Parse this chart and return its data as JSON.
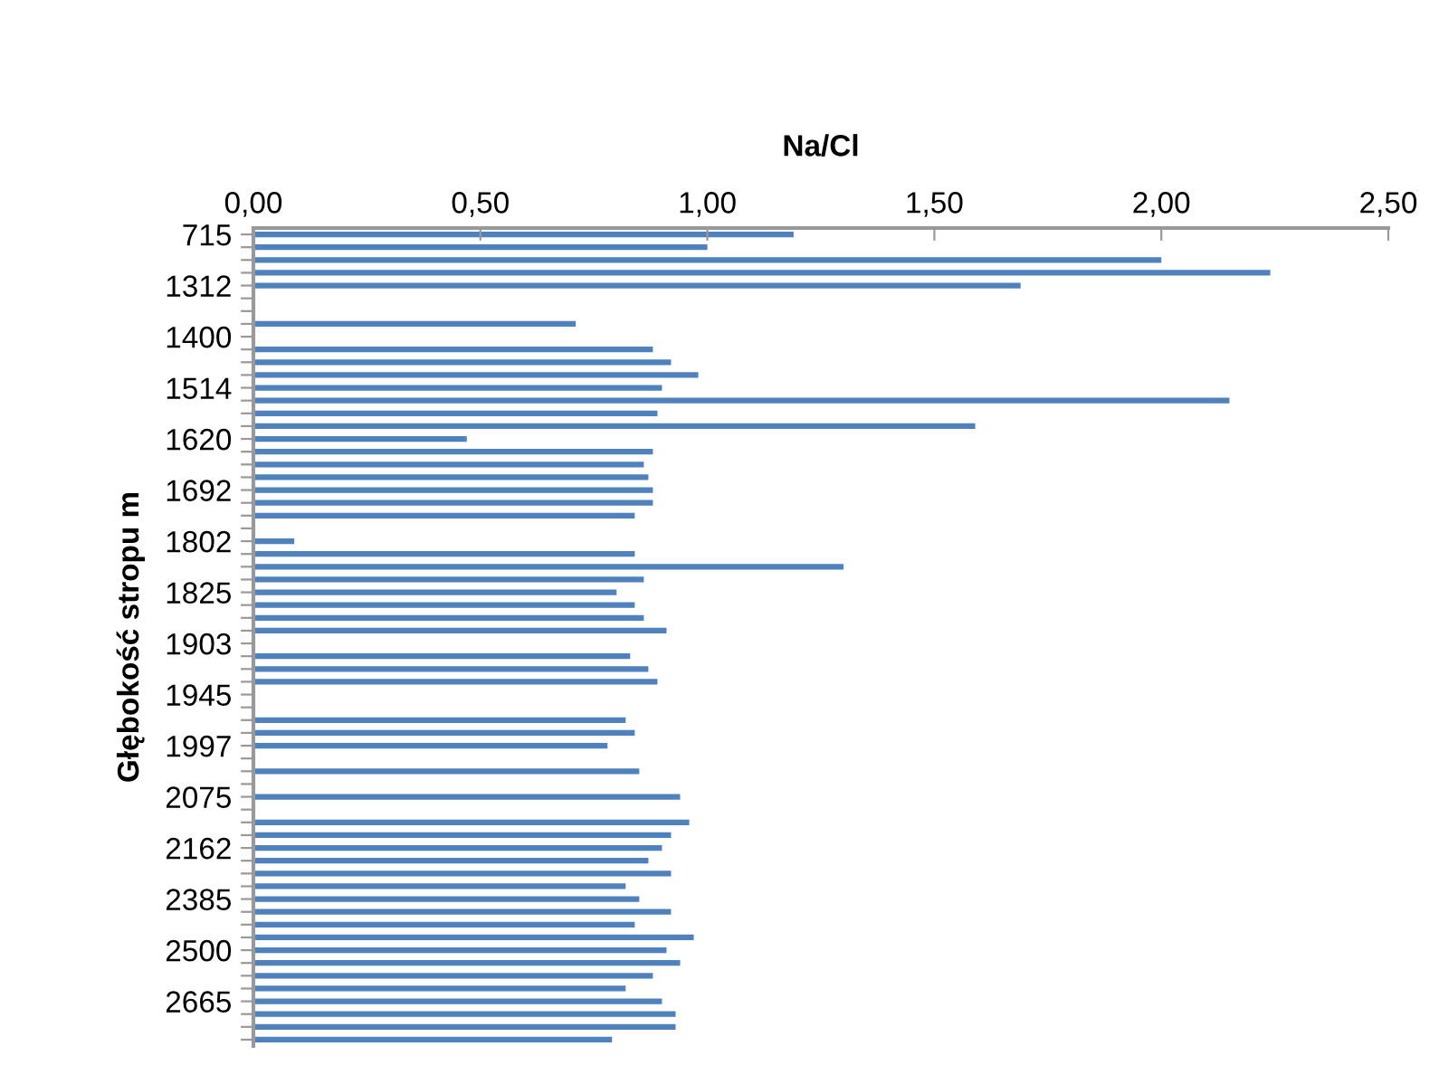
{
  "chart_data": {
    "type": "bar",
    "orientation": "horizontal",
    "xlabel": "Na/Cl",
    "ylabel": "Głębokość stropu m",
    "categories": [
      "715",
      null,
      null,
      null,
      "1312",
      null,
      null,
      null,
      "1400",
      null,
      null,
      null,
      "1514",
      null,
      null,
      null,
      "1620",
      null,
      null,
      null,
      "1692",
      null,
      null,
      null,
      "1802",
      null,
      null,
      null,
      "1825",
      null,
      null,
      null,
      "1903",
      null,
      null,
      null,
      "1945",
      null,
      null,
      null,
      "1997",
      null,
      null,
      null,
      "2075",
      null,
      null,
      null,
      "2162",
      null,
      null,
      null,
      "2385",
      null,
      null,
      null,
      "2500",
      null,
      null,
      null,
      "2665",
      null,
      null,
      null
    ],
    "values": [
      1.19,
      1.0,
      2.0,
      2.24,
      1.69,
      null,
      null,
      0.71,
      null,
      0.88,
      0.92,
      0.98,
      0.9,
      2.15,
      0.89,
      1.59,
      0.47,
      0.88,
      0.86,
      0.87,
      0.88,
      0.88,
      0.84,
      null,
      0.09,
      0.84,
      1.3,
      0.86,
      0.8,
      0.84,
      0.86,
      0.91,
      null,
      0.83,
      0.87,
      0.89,
      null,
      null,
      0.82,
      0.84,
      0.78,
      null,
      0.85,
      null,
      0.94,
      null,
      0.96,
      0.92,
      0.9,
      0.87,
      0.92,
      0.82,
      0.85,
      0.92,
      0.84,
      0.97,
      0.91,
      0.94,
      0.88,
      0.82,
      0.9,
      0.93,
      0.93,
      0.79
    ],
    "color": "#4f81bd",
    "xlim": [
      0,
      2.5
    ],
    "xticks": [
      {
        "value": 0,
        "label": "0,00"
      },
      {
        "value": 0.5,
        "label": "0,50"
      },
      {
        "value": 1,
        "label": "1,00"
      },
      {
        "value": 1.5,
        "label": "1,50"
      },
      {
        "value": 2,
        "label": "2,00"
      },
      {
        "value": 2.5,
        "label": "2,50"
      }
    ],
    "grid": false,
    "legend": false
  }
}
